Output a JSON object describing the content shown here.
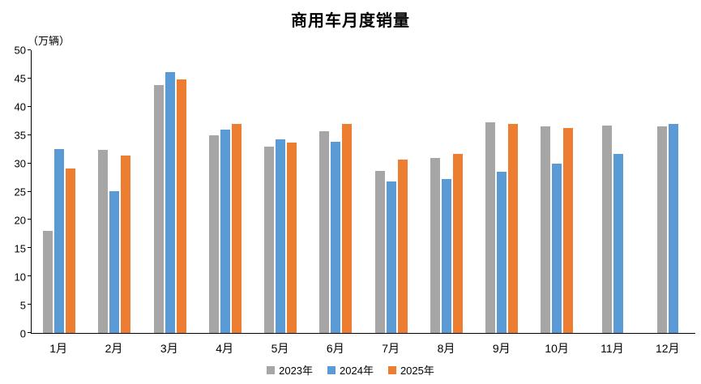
{
  "chart_data": {
    "type": "bar",
    "title": "商用车月度销量",
    "ylabel": "（万辆）",
    "xlabel": "",
    "categories": [
      "1月",
      "2月",
      "3月",
      "4月",
      "5月",
      "6月",
      "7月",
      "8月",
      "9月",
      "10月",
      "11月",
      "12月"
    ],
    "series": [
      {
        "name": "2023年",
        "color": "#A6A6A6",
        "values": [
          18.0,
          32.4,
          43.8,
          35.0,
          33.0,
          35.7,
          28.7,
          31.0,
          37.3,
          36.6,
          36.7,
          36.5
        ]
      },
      {
        "name": "2024年",
        "color": "#5B9BD5",
        "values": [
          32.5,
          25.1,
          46.1,
          35.9,
          34.3,
          33.8,
          26.8,
          27.2,
          28.5,
          29.9,
          31.6,
          37.0
        ]
      },
      {
        "name": "2025年",
        "color": "#ED7D31",
        "values": [
          29.1,
          31.4,
          44.8,
          36.9,
          33.6,
          37.0,
          30.6,
          31.7,
          36.9,
          36.2,
          null,
          null
        ]
      }
    ],
    "ylim": [
      0,
      50
    ],
    "ytick_step": 5,
    "grid": false,
    "legend_position": "bottom"
  }
}
